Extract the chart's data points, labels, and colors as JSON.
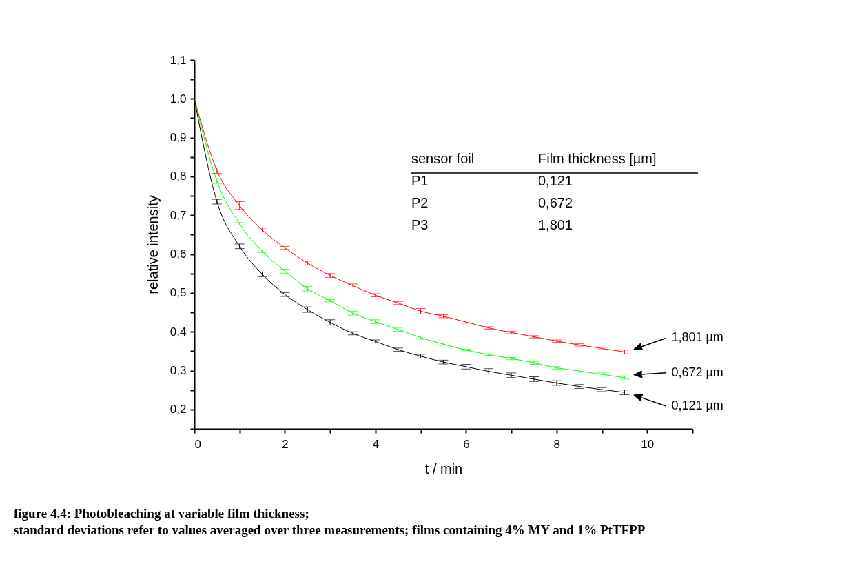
{
  "chart_data": {
    "type": "line",
    "title": "figure 4.4: Photobleaching at variable film thickness;",
    "subtitle": "standard deviations refer to values averaged over three measurements; films containing 4% MY and 1% PtTFPP",
    "xlabel": "t / min",
    "ylabel": "relative intensity",
    "x": [
      0,
      0.5,
      1,
      1.5,
      2,
      2.5,
      3,
      3.5,
      4,
      4.5,
      5,
      5.5,
      6,
      6.5,
      7,
      7.5,
      8,
      8.5,
      9,
      9.5
    ],
    "series": [
      {
        "color": "#ff0000",
        "values": [
          1.0,
          0.815,
          0.725,
          0.662,
          0.616,
          0.577,
          0.545,
          0.519,
          0.494,
          0.474,
          0.453,
          0.44,
          0.425,
          0.41,
          0.398,
          0.387,
          0.376,
          0.366,
          0.357,
          0.348
        ],
        "errors": [
          null,
          0.007,
          0.01,
          0.005,
          0.004,
          0.005,
          0.005,
          0.004,
          0.004,
          0.004,
          0.007,
          0.004,
          0.003,
          0.003,
          0.003,
          0.003,
          0.003,
          0.003,
          0.003,
          0.005
        ]
      },
      {
        "color": "#00ff00",
        "values": [
          1.0,
          0.788,
          0.678,
          0.607,
          0.556,
          0.511,
          0.48,
          0.448,
          0.426,
          0.406,
          0.385,
          0.368,
          0.353,
          0.341,
          0.331,
          0.32,
          0.307,
          0.299,
          0.29,
          0.282
        ],
        "errors": [
          null,
          0.006,
          0.003,
          0.003,
          0.005,
          0.006,
          0.003,
          0.005,
          0.005,
          0.005,
          0.004,
          0.003,
          0.002,
          0.002,
          0.003,
          0.004,
          0.003,
          0.003,
          0.004,
          0.004
        ]
      },
      {
        "color": "#000000",
        "values": [
          1.0,
          0.735,
          0.62,
          0.548,
          0.496,
          0.457,
          0.424,
          0.396,
          0.375,
          0.354,
          0.337,
          0.322,
          0.31,
          0.298,
          0.288,
          0.278,
          0.268,
          0.259,
          0.251,
          0.244
        ],
        "errors": [
          null,
          0.006,
          0.006,
          0.006,
          0.005,
          0.007,
          0.007,
          0.004,
          0.004,
          0.004,
          0.005,
          0.005,
          0.006,
          0.007,
          0.006,
          0.006,
          0.006,
          0.005,
          0.005,
          0.006
        ]
      }
    ],
    "xlim": [
      0,
      11
    ],
    "xticks": [
      0,
      {
        "value": 1,
        "label": null
      },
      2,
      {
        "value": 3,
        "label": null
      },
      4,
      {
        "value": 5,
        "label": null
      },
      6,
      {
        "value": 7,
        "label": null
      },
      8,
      {
        "value": 9,
        "label": null
      },
      10,
      {
        "value": 11,
        "label": null
      }
    ],
    "ylim": [
      0.15,
      1.1
    ],
    "yticks": [
      {
        "value": 0.15,
        "label": null
      },
      {
        "value": 0.2,
        "label": "0,2"
      },
      {
        "value": 0.25,
        "label": null
      },
      {
        "value": 0.3,
        "label": "0,3"
      },
      {
        "value": 0.35,
        "label": null
      },
      {
        "value": 0.4,
        "label": "0,4"
      },
      {
        "value": 0.45,
        "label": null
      },
      {
        "value": 0.5,
        "label": "0,5"
      },
      {
        "value": 0.55,
        "label": null
      },
      {
        "value": 0.6,
        "label": "0,6"
      },
      {
        "value": 0.65,
        "label": null
      },
      {
        "value": 0.7,
        "label": "0,7"
      },
      {
        "value": 0.75,
        "label": null
      },
      {
        "value": 0.8,
        "label": "0,8"
      },
      {
        "value": 0.85,
        "label": null
      },
      {
        "value": 0.9,
        "label": "0,9"
      },
      {
        "value": 0.95,
        "label": null
      },
      {
        "value": 1.0,
        "label": "1,0"
      },
      {
        "value": 1.05,
        "label": null
      },
      {
        "value": 1.1,
        "label": "1,1"
      }
    ],
    "annotations": [
      "sensor foil",
      "Film thickness [µm]",
      "P1",
      "0,121",
      "P2",
      "0,672",
      "P3",
      "1,801",
      "1,801 µm",
      "0,672 µm",
      "0,121 µm"
    ],
    "grid": false,
    "legend": false,
    "marker": "none",
    "line_style": "solid"
  }
}
